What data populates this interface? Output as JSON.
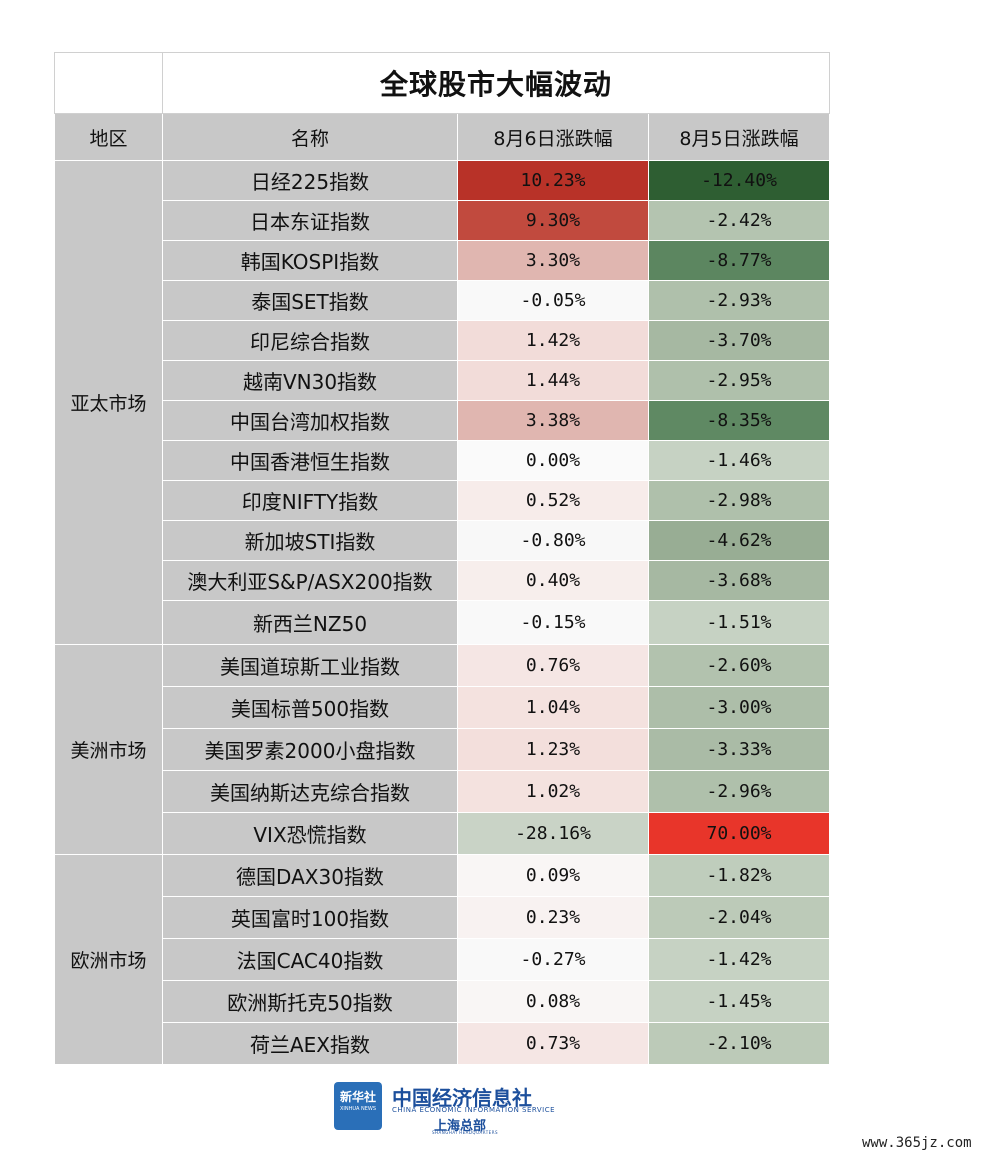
{
  "title": "全球股市大幅波动",
  "headers": {
    "region": "地区",
    "name": "名称",
    "aug6": "8月6日涨跌幅",
    "aug5": "8月5日涨跌幅"
  },
  "regions": [
    {
      "label": "亚太市场",
      "rows": [
        {
          "name": "日经225指数",
          "aug6": "10.23%",
          "aug5": "-12.40%",
          "aug6_color": "#b83228",
          "aug5_color": "#2e5e32"
        },
        {
          "name": "日本东证指数",
          "aug6": "9.30%",
          "aug5": "-2.42%",
          "aug6_color": "#c14a3e",
          "aug5_color": "#b4c4b0"
        },
        {
          "name": "韩国KOSPI指数",
          "aug6": "3.30%",
          "aug5": "-8.77%",
          "aug6_color": "#e0b6b0",
          "aug5_color": "#5c8660"
        },
        {
          "name": "泰国SET指数",
          "aug6": "-0.05%",
          "aug5": "-2.93%",
          "aug6_color": "#f9f9f9",
          "aug5_color": "#afc0ab"
        },
        {
          "name": "印尼综合指数",
          "aug6": "1.42%",
          "aug5": "-3.70%",
          "aug6_color": "#f2dcd9",
          "aug5_color": "#a6b8a2"
        },
        {
          "name": "越南VN30指数",
          "aug6": "1.44%",
          "aug5": "-2.95%",
          "aug6_color": "#f2dcd9",
          "aug5_color": "#afc0ab"
        },
        {
          "name": "中国台湾加权指数",
          "aug6": "3.38%",
          "aug5": "-8.35%",
          "aug6_color": "#e0b6b0",
          "aug5_color": "#5f8963"
        },
        {
          "name": "中国香港恒生指数",
          "aug6": "0.00%",
          "aug5": "-1.46%",
          "aug6_color": "#fafafa",
          "aug5_color": "#c6d2c3"
        },
        {
          "name": "印度NIFTY指数",
          "aug6": "0.52%",
          "aug5": "-2.98%",
          "aug6_color": "#f7ecea",
          "aug5_color": "#afc0ab"
        },
        {
          "name": "新加坡STI指数",
          "aug6": "-0.80%",
          "aug5": "-4.62%",
          "aug6_color": "#f8f8f8",
          "aug5_color": "#98ad94"
        },
        {
          "name": "澳大利亚S&P/ASX200指数",
          "aug6": "0.40%",
          "aug5": "-3.68%",
          "aug6_color": "#f7eeec",
          "aug5_color": "#a6b8a2"
        },
        {
          "name": "新西兰NZ50",
          "aug6": "-0.15%",
          "aug5": "-1.51%",
          "aug6_color": "#f9f9f9",
          "aug5_color": "#c6d2c3"
        }
      ]
    },
    {
      "label": "美洲市场",
      "rows": [
        {
          "name": "美国道琼斯工业指数",
          "aug6": "0.76%",
          "aug5": "-2.60%",
          "aug6_color": "#f5e6e4",
          "aug5_color": "#b2c2ae"
        },
        {
          "name": "美国标普500指数",
          "aug6": "1.04%",
          "aug5": "-3.00%",
          "aug6_color": "#f4e2df",
          "aug5_color": "#adbea9"
        },
        {
          "name": "美国罗素2000小盘指数",
          "aug6": "1.23%",
          "aug5": "-3.33%",
          "aug6_color": "#f3dfdc",
          "aug5_color": "#aabba6"
        },
        {
          "name": "美国纳斯达克综合指数",
          "aug6": "1.02%",
          "aug5": "-2.96%",
          "aug6_color": "#f4e2df",
          "aug5_color": "#afc0ab"
        },
        {
          "name": "VIX恐慌指数",
          "aug6": "-28.16%",
          "aug5": "70.00%",
          "aug6_color": "#c9d3c6",
          "aug5_color": "#e8352a"
        }
      ]
    },
    {
      "label": "欧洲市场",
      "rows": [
        {
          "name": "德国DAX30指数",
          "aug6": "0.09%",
          "aug5": "-1.82%",
          "aug6_color": "#f9f6f5",
          "aug5_color": "#bfcdbc"
        },
        {
          "name": "英国富时100指数",
          "aug6": "0.23%",
          "aug5": "-2.04%",
          "aug6_color": "#f8f2f1",
          "aug5_color": "#bccab8"
        },
        {
          "name": "法国CAC40指数",
          "aug6": "-0.27%",
          "aug5": "-1.42%",
          "aug6_color": "#f9f9f9",
          "aug5_color": "#c6d2c3"
        },
        {
          "name": "欧洲斯托克50指数",
          "aug6": "0.08%",
          "aug5": "-1.45%",
          "aug6_color": "#f9f6f5",
          "aug5_color": "#c6d2c3"
        },
        {
          "name": "荷兰AEX指数",
          "aug6": "0.73%",
          "aug5": "-2.10%",
          "aug6_color": "#f5e6e4",
          "aug5_color": "#bccab8"
        }
      ]
    }
  ],
  "footer": {
    "logo_box_top": "新华社",
    "logo_box_bottom": "XINHUA NEWS",
    "org_cn": "中国经济信息社",
    "org_en": "CHINA ECONOMIC INFORMATION SERVICE",
    "org_sub": "上海总部",
    "org_sub_en": "SHANGHAI HEADQUARTERS",
    "watermark": "www.365jz.com"
  }
}
